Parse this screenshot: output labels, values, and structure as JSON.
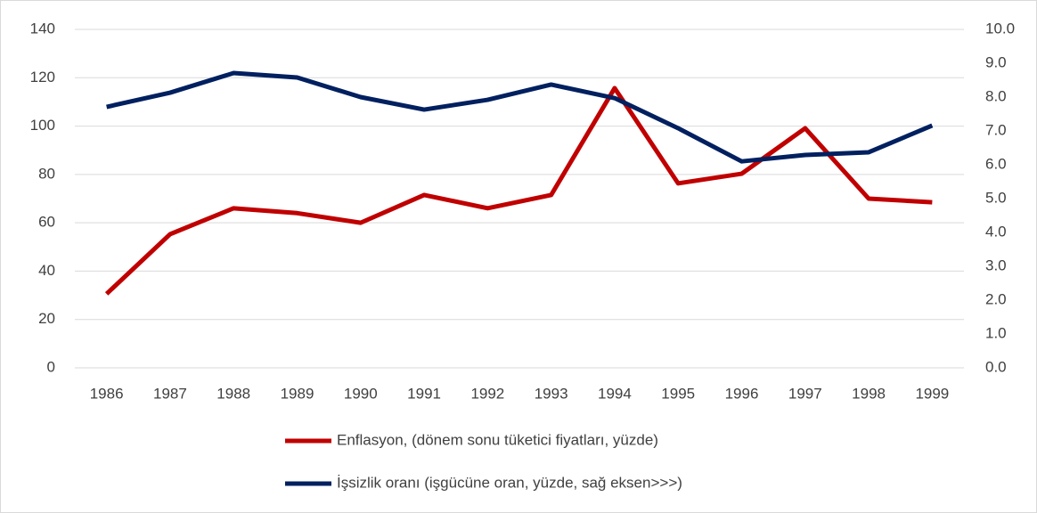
{
  "chart_data": {
    "type": "line",
    "categories": [
      "1986",
      "1987",
      "1988",
      "1989",
      "1990",
      "1991",
      "1992",
      "1993",
      "1994",
      "1995",
      "1996",
      "1997",
      "1998",
      "1999"
    ],
    "series": [
      {
        "name": "Enflasyon, (dönem sonu tüketici fiyatları, yüzde)",
        "color": "#c00000",
        "values": [
          30.6,
          55.3,
          66,
          64,
          60,
          71.5,
          66,
          71.5,
          115.7,
          76.3,
          80.3,
          99.1,
          70,
          68.5
        ]
      },
      {
        "name": "İşsizlik oranı (işgücüne oran, yüzde, sağ eksen>>>)",
        "color": "#002060",
        "axis": "y2",
        "values": [
          7.71,
          8.13,
          8.71,
          8.58,
          8.0,
          7.63,
          7.92,
          8.37,
          7.97,
          7.08,
          6.1,
          6.29,
          6.37,
          7.16
        ]
      }
    ],
    "ylim": [
      0,
      140
    ],
    "yticks": [
      0,
      20,
      40,
      60,
      80,
      100,
      120,
      140
    ],
    "y2lim": [
      0,
      10
    ],
    "y2ticks": [
      {
        "value": 0,
        "label": "0.0"
      },
      {
        "value": 1,
        "label": "1.0"
      },
      {
        "value": 2,
        "label": "2.0"
      },
      {
        "value": 3,
        "label": "3.0"
      },
      {
        "value": 4,
        "label": "4.0"
      },
      {
        "value": 5,
        "label": "5.0"
      },
      {
        "value": 6,
        "label": "6.0"
      },
      {
        "value": 7,
        "label": "7.0"
      },
      {
        "value": 8,
        "label": "8.0"
      },
      {
        "value": 9,
        "label": "9.0"
      },
      {
        "value": 10,
        "label": "10.0"
      }
    ],
    "grid": true,
    "legend": "bottom"
  }
}
